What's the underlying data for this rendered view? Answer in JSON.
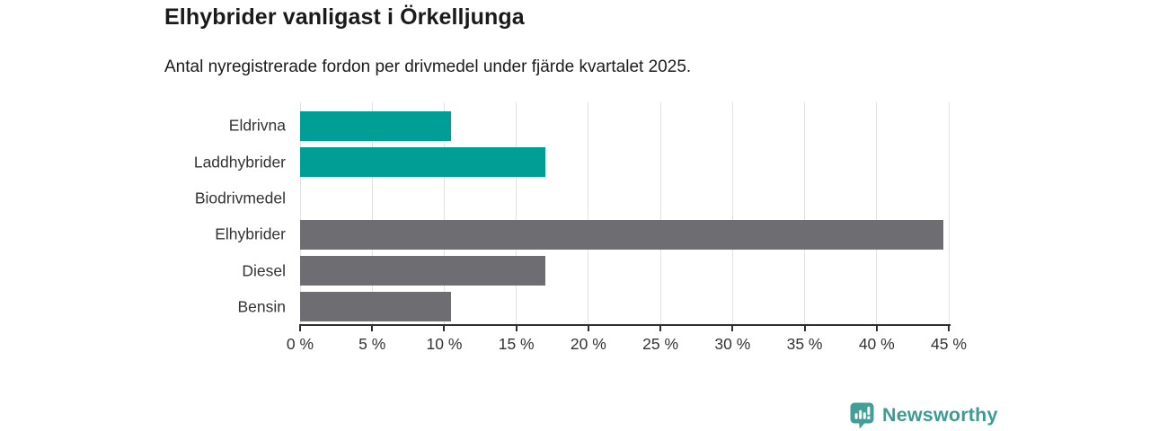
{
  "header": {
    "title": "Elhybrider vanligast i Örkelljunga",
    "subtitle": "Antal nyregistrerade fordon per drivmedel under fjärde kvartalet 2025."
  },
  "branding": {
    "logo_text": "Newsworthy",
    "logo_icon": "bar-chart-speech-bubble-icon",
    "logo_color": "#3d9a94"
  },
  "colors": {
    "teal_bar": "#009e95",
    "gray_bar": "#6e6e72",
    "axis": "#2f2f2f",
    "gridline": "#e2e2e2",
    "label_text": "#333333",
    "title_text": "#1a1a1a",
    "background": "#ffffff"
  },
  "chart_data": {
    "type": "bar",
    "orientation": "horizontal",
    "title": "Elhybrider vanligast i Örkelljunga",
    "subtitle": "Antal nyregistrerade fordon per drivmedel under fjärde kvartalet 2025.",
    "categories": [
      "Eldrivna",
      "Laddhybrider",
      "Biodrivmedel",
      "Elhybrider",
      "Diesel",
      "Bensin"
    ],
    "values": [
      10.5,
      17.0,
      0,
      44.6,
      17.0,
      10.5
    ],
    "bar_colors": [
      "#009e95",
      "#009e95",
      "#009e95",
      "#6e6e72",
      "#6e6e72",
      "#6e6e72"
    ],
    "xlabel": "",
    "ylabel": "",
    "xlim": [
      0,
      45
    ],
    "xticks": [
      0,
      5,
      10,
      15,
      20,
      25,
      30,
      35,
      40,
      45
    ],
    "xtick_suffix": " %",
    "grid": true,
    "legend": false
  }
}
